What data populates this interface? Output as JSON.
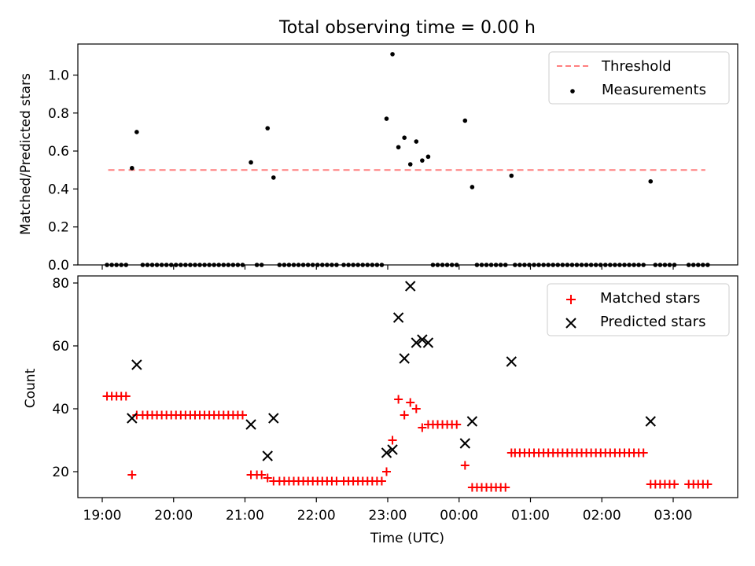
{
  "chart_data": [
    {
      "type": "scatter",
      "title": "Total observing time = 0.00 h",
      "ylabel": "Matched/Predicted stars",
      "ylim": [
        0,
        1.16
      ],
      "yticks": [
        "0.0",
        "0.2",
        "0.4",
        "0.6",
        "0.8",
        "1.0"
      ],
      "legend": {
        "position": "upper right",
        "entries": [
          "Threshold",
          "Measurements"
        ]
      },
      "threshold": {
        "name": "Threshold",
        "value": 0.5,
        "x_start": "19:05",
        "x_end": "03:27",
        "color": "#ff7f7f",
        "style": "dashed"
      },
      "series": [
        {
          "name": "Measurements",
          "color": "#000000",
          "points": [
            [
              "19:04",
              0
            ],
            [
              "19:08",
              0
            ],
            [
              "19:12",
              0
            ],
            [
              "19:16",
              0
            ],
            [
              "19:20",
              0
            ],
            [
              "19:25",
              0.51
            ],
            [
              "19:29",
              0.7
            ],
            [
              "19:34",
              0
            ],
            [
              "19:38",
              0
            ],
            [
              "19:42",
              0
            ],
            [
              "19:46",
              0
            ],
            [
              "19:50",
              0
            ],
            [
              "19:54",
              0
            ],
            [
              "19:58",
              0
            ],
            [
              "20:02",
              0
            ],
            [
              "20:06",
              0
            ],
            [
              "20:10",
              0
            ],
            [
              "20:14",
              0
            ],
            [
              "20:18",
              0
            ],
            [
              "20:22",
              0
            ],
            [
              "20:26",
              0
            ],
            [
              "20:30",
              0
            ],
            [
              "20:34",
              0
            ],
            [
              "20:38",
              0
            ],
            [
              "20:42",
              0
            ],
            [
              "20:46",
              0
            ],
            [
              "20:50",
              0
            ],
            [
              "20:54",
              0
            ],
            [
              "20:58",
              0
            ],
            [
              "21:05",
              0.54
            ],
            [
              "21:10",
              0
            ],
            [
              "21:14",
              0
            ],
            [
              "21:19",
              0.72
            ],
            [
              "21:24",
              0.46
            ],
            [
              "21:29",
              0
            ],
            [
              "21:33",
              0
            ],
            [
              "21:37",
              0
            ],
            [
              "21:41",
              0
            ],
            [
              "21:45",
              0
            ],
            [
              "21:49",
              0
            ],
            [
              "21:53",
              0
            ],
            [
              "21:57",
              0
            ],
            [
              "22:01",
              0
            ],
            [
              "22:05",
              0
            ],
            [
              "22:09",
              0
            ],
            [
              "22:13",
              0
            ],
            [
              "22:17",
              0
            ],
            [
              "22:23",
              0
            ],
            [
              "22:27",
              0
            ],
            [
              "22:31",
              0
            ],
            [
              "22:35",
              0
            ],
            [
              "22:39",
              0
            ],
            [
              "22:43",
              0
            ],
            [
              "22:47",
              0
            ],
            [
              "22:51",
              0
            ],
            [
              "22:55",
              0
            ],
            [
              "22:59",
              0.77
            ],
            [
              "23:04",
              1.11
            ],
            [
              "23:09",
              0.62
            ],
            [
              "23:14",
              0.67
            ],
            [
              "23:19",
              0.53
            ],
            [
              "23:24",
              0.65
            ],
            [
              "23:29",
              0.55
            ],
            [
              "23:34",
              0.57
            ],
            [
              "23:38",
              0
            ],
            [
              "23:42",
              0
            ],
            [
              "23:46",
              0
            ],
            [
              "23:50",
              0
            ],
            [
              "23:54",
              0
            ],
            [
              "23:58",
              0
            ],
            [
              "00:05",
              0.76
            ],
            [
              "00:11",
              0.41
            ],
            [
              "00:15",
              0
            ],
            [
              "00:19",
              0
            ],
            [
              "00:23",
              0
            ],
            [
              "00:27",
              0
            ],
            [
              "00:31",
              0
            ],
            [
              "00:35",
              0
            ],
            [
              "00:39",
              0
            ],
            [
              "00:44",
              0.47
            ],
            [
              "00:47",
              0
            ],
            [
              "00:51",
              0
            ],
            [
              "00:55",
              0
            ],
            [
              "00:59",
              0
            ],
            [
              "01:03",
              0
            ],
            [
              "01:07",
              0
            ],
            [
              "01:11",
              0
            ],
            [
              "01:15",
              0
            ],
            [
              "01:19",
              0
            ],
            [
              "01:23",
              0
            ],
            [
              "01:27",
              0
            ],
            [
              "01:31",
              0
            ],
            [
              "01:35",
              0
            ],
            [
              "01:39",
              0
            ],
            [
              "01:43",
              0
            ],
            [
              "01:47",
              0
            ],
            [
              "01:51",
              0
            ],
            [
              "01:55",
              0
            ],
            [
              "01:59",
              0
            ],
            [
              "02:03",
              0
            ],
            [
              "02:07",
              0
            ],
            [
              "02:11",
              0
            ],
            [
              "02:15",
              0
            ],
            [
              "02:19",
              0
            ],
            [
              "02:23",
              0
            ],
            [
              "02:27",
              0
            ],
            [
              "02:31",
              0
            ],
            [
              "02:35",
              0
            ],
            [
              "02:41",
              0.44
            ],
            [
              "02:45",
              0
            ],
            [
              "02:49",
              0
            ],
            [
              "02:53",
              0
            ],
            [
              "02:57",
              0
            ],
            [
              "03:01",
              0
            ],
            [
              "03:13",
              0
            ],
            [
              "03:17",
              0
            ],
            [
              "03:21",
              0
            ],
            [
              "03:25",
              0
            ],
            [
              "03:29",
              0
            ]
          ]
        }
      ]
    },
    {
      "type": "scatter",
      "xlabel": "Time (UTC)",
      "ylabel": "Count",
      "ylim": [
        12,
        82
      ],
      "yticks": [
        "20",
        "40",
        "60",
        "80"
      ],
      "xticks": [
        "19:00",
        "20:00",
        "21:00",
        "22:00",
        "23:00",
        "00:00",
        "01:00",
        "02:00",
        "03:00"
      ],
      "legend": {
        "position": "upper right",
        "entries": [
          "Matched stars",
          "Predicted stars"
        ]
      },
      "series": [
        {
          "name": "Matched stars",
          "color": "#ff0000",
          "marker": "+",
          "points": [
            [
              "19:04",
              44
            ],
            [
              "19:08",
              44
            ],
            [
              "19:12",
              44
            ],
            [
              "19:16",
              44
            ],
            [
              "19:20",
              44
            ],
            [
              "19:25",
              19
            ],
            [
              "19:29",
              38
            ],
            [
              "19:34",
              38
            ],
            [
              "19:38",
              38
            ],
            [
              "19:42",
              38
            ],
            [
              "19:46",
              38
            ],
            [
              "19:50",
              38
            ],
            [
              "19:54",
              38
            ],
            [
              "19:58",
              38
            ],
            [
              "20:02",
              38
            ],
            [
              "20:06",
              38
            ],
            [
              "20:10",
              38
            ],
            [
              "20:14",
              38
            ],
            [
              "20:18",
              38
            ],
            [
              "20:22",
              38
            ],
            [
              "20:26",
              38
            ],
            [
              "20:30",
              38
            ],
            [
              "20:34",
              38
            ],
            [
              "20:38",
              38
            ],
            [
              "20:42",
              38
            ],
            [
              "20:46",
              38
            ],
            [
              "20:50",
              38
            ],
            [
              "20:54",
              38
            ],
            [
              "20:58",
              38
            ],
            [
              "21:05",
              19
            ],
            [
              "21:10",
              19
            ],
            [
              "21:14",
              19
            ],
            [
              "21:19",
              18
            ],
            [
              "21:24",
              17
            ],
            [
              "21:29",
              17
            ],
            [
              "21:33",
              17
            ],
            [
              "21:37",
              17
            ],
            [
              "21:41",
              17
            ],
            [
              "21:45",
              17
            ],
            [
              "21:49",
              17
            ],
            [
              "21:53",
              17
            ],
            [
              "21:57",
              17
            ],
            [
              "22:01",
              17
            ],
            [
              "22:05",
              17
            ],
            [
              "22:09",
              17
            ],
            [
              "22:13",
              17
            ],
            [
              "22:17",
              17
            ],
            [
              "22:23",
              17
            ],
            [
              "22:27",
              17
            ],
            [
              "22:31",
              17
            ],
            [
              "22:35",
              17
            ],
            [
              "22:39",
              17
            ],
            [
              "22:43",
              17
            ],
            [
              "22:47",
              17
            ],
            [
              "22:51",
              17
            ],
            [
              "22:55",
              17
            ],
            [
              "22:59",
              20
            ],
            [
              "23:04",
              30
            ],
            [
              "23:09",
              43
            ],
            [
              "23:14",
              38
            ],
            [
              "23:19",
              42
            ],
            [
              "23:24",
              40
            ],
            [
              "23:29",
              34
            ],
            [
              "23:34",
              35
            ],
            [
              "23:38",
              35
            ],
            [
              "23:42",
              35
            ],
            [
              "23:46",
              35
            ],
            [
              "23:50",
              35
            ],
            [
              "23:54",
              35
            ],
            [
              "23:58",
              35
            ],
            [
              "00:05",
              22
            ],
            [
              "00:11",
              15
            ],
            [
              "00:15",
              15
            ],
            [
              "00:19",
              15
            ],
            [
              "00:23",
              15
            ],
            [
              "00:27",
              15
            ],
            [
              "00:31",
              15
            ],
            [
              "00:35",
              15
            ],
            [
              "00:39",
              15
            ],
            [
              "00:44",
              26
            ],
            [
              "00:47",
              26
            ],
            [
              "00:51",
              26
            ],
            [
              "00:55",
              26
            ],
            [
              "00:59",
              26
            ],
            [
              "01:03",
              26
            ],
            [
              "01:07",
              26
            ],
            [
              "01:11",
              26
            ],
            [
              "01:15",
              26
            ],
            [
              "01:19",
              26
            ],
            [
              "01:23",
              26
            ],
            [
              "01:27",
              26
            ],
            [
              "01:31",
              26
            ],
            [
              "01:35",
              26
            ],
            [
              "01:39",
              26
            ],
            [
              "01:43",
              26
            ],
            [
              "01:47",
              26
            ],
            [
              "01:51",
              26
            ],
            [
              "01:55",
              26
            ],
            [
              "01:59",
              26
            ],
            [
              "02:03",
              26
            ],
            [
              "02:07",
              26
            ],
            [
              "02:11",
              26
            ],
            [
              "02:15",
              26
            ],
            [
              "02:19",
              26
            ],
            [
              "02:23",
              26
            ],
            [
              "02:27",
              26
            ],
            [
              "02:31",
              26
            ],
            [
              "02:35",
              26
            ],
            [
              "02:41",
              16
            ],
            [
              "02:45",
              16
            ],
            [
              "02:49",
              16
            ],
            [
              "02:53",
              16
            ],
            [
              "02:57",
              16
            ],
            [
              "03:01",
              16
            ],
            [
              "03:13",
              16
            ],
            [
              "03:17",
              16
            ],
            [
              "03:21",
              16
            ],
            [
              "03:25",
              16
            ],
            [
              "03:29",
              16
            ]
          ]
        },
        {
          "name": "Predicted stars",
          "color": "#000000",
          "marker": "x",
          "points": [
            [
              "19:25",
              37
            ],
            [
              "19:29",
              54
            ],
            [
              "21:05",
              35
            ],
            [
              "21:19",
              25
            ],
            [
              "21:24",
              37
            ],
            [
              "22:59",
              26
            ],
            [
              "23:04",
              27
            ],
            [
              "23:09",
              69
            ],
            [
              "23:14",
              56
            ],
            [
              "23:19",
              79
            ],
            [
              "23:24",
              61
            ],
            [
              "23:29",
              62
            ],
            [
              "23:34",
              61
            ],
            [
              "00:05",
              29
            ],
            [
              "00:11",
              36
            ],
            [
              "00:44",
              55
            ],
            [
              "02:41",
              36
            ]
          ]
        }
      ]
    }
  ]
}
